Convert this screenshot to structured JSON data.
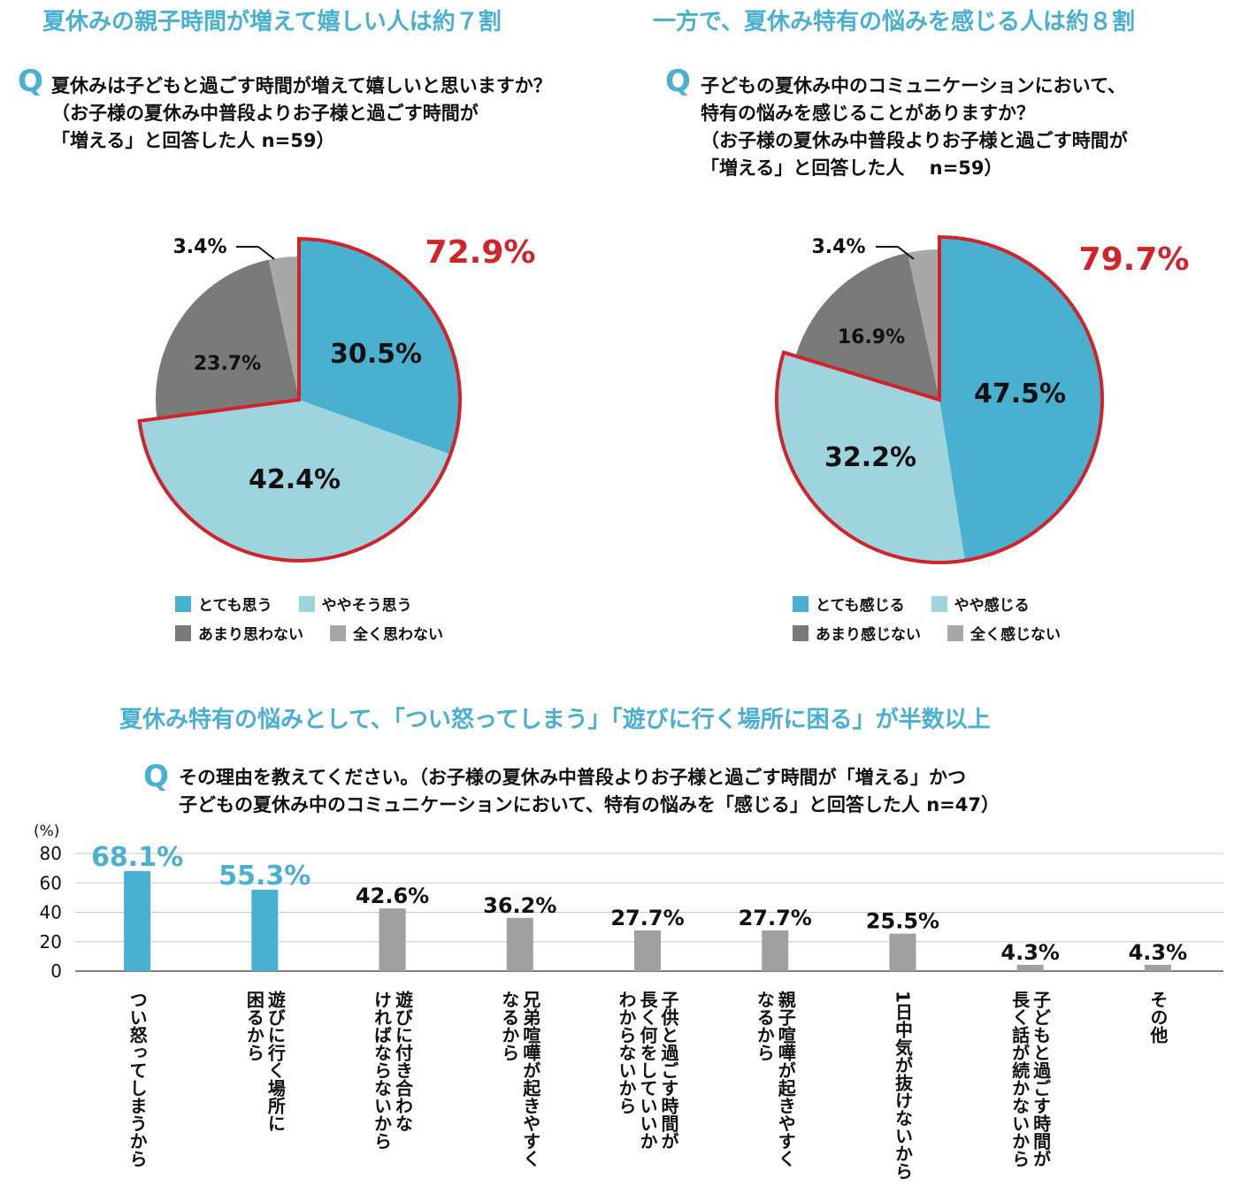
{
  "headings": {
    "left": "夏休みの親子時間が増えて嬉しい人は約７割",
    "right": "一方で、夏休み特有の悩みを感じる人は約８割",
    "bottom": "夏休み特有の悩みとして、「つい怒ってしまう」「遊びに行く場所に困る」が半数以上"
  },
  "q_mark": "Q",
  "questions": {
    "left": [
      "夏休みは子どもと過ごす時間が増えて嬉しいと思いますか？",
      "（お子様の夏休み中普段よりお子様と過ごす時間が",
      "「増える」と回答した人 n=59）"
    ],
    "right": [
      "子どもの夏休み中のコミュニケーションにおいて、",
      "特有の悩みを感じることがありますか？",
      "（お子様の夏休み中普段よりお子様と過ごす時間が",
      "「増える」と回答した人　 n=59）"
    ],
    "bottom": [
      "その理由を教えてください。（お子様の夏休み中普段よりお子様と過ごす時間が「増える」かつ",
      "子どもの夏休み中のコミュニケーションにおいて、特有の悩みを「感じる」と回答した人 n=47）"
    ]
  },
  "colors": {
    "dark_blue": "#4ab0d0",
    "light_blue": "#9dd4de",
    "dark_gray": "#7a7a7a",
    "light_gray": "#a8a8a8",
    "red": "#d2232a",
    "bar_gray": "#a0a0a0",
    "heading": "#4ab0d0"
  },
  "chart_data": [
    {
      "type": "pie",
      "labels": [
        "とても思う",
        "ややそう思う",
        "あまり思わない",
        "全く思わない"
      ],
      "values": [
        30.5,
        42.4,
        23.7,
        3.4
      ],
      "value_labels": [
        "30.5%",
        "42.4%",
        "23.7%",
        "3.4%"
      ],
      "highlight_total": "72.9%",
      "legend_rows": [
        [
          "とても思う",
          "ややそう思う"
        ],
        [
          "あまり思わない",
          "全く思わない"
        ]
      ]
    },
    {
      "type": "pie",
      "labels": [
        "とても感じる",
        "やや感じる",
        "あまり感じない",
        "全く感じない"
      ],
      "values": [
        47.5,
        32.2,
        16.9,
        3.4
      ],
      "value_labels": [
        "47.5%",
        "32.2%",
        "16.9%",
        "3.4%"
      ],
      "highlight_total": "79.7%",
      "legend_rows": [
        [
          "とても感じる",
          "やや感じる"
        ],
        [
          "あまり感じない",
          "全く感じない"
        ]
      ]
    },
    {
      "type": "bar",
      "unit_label": "(%)",
      "yticks": [
        "0",
        "20",
        "40",
        "60",
        "80"
      ],
      "ylim": [
        0,
        80
      ],
      "categories": [
        [
          "つい怒ってしまうから"
        ],
        [
          "遊びに行く場所に",
          "困るから"
        ],
        [
          "遊びに付き合わな",
          "ければならないから"
        ],
        [
          "兄弟喧嘩が起きやすく",
          "なるから"
        ],
        [
          "子供と過ごす時間が",
          "長く何をしていいか",
          "わからないから"
        ],
        [
          "親子喧嘩が起きやすく",
          "なるから"
        ],
        [
          "1日中気が抜けないから"
        ],
        [
          "子どもと過ごす時間が",
          "長く話が続かないから"
        ],
        [
          "その他"
        ]
      ],
      "values": [
        68.1,
        55.3,
        42.6,
        36.2,
        27.7,
        27.7,
        25.5,
        4.3,
        4.3
      ],
      "value_labels": [
        "68.1%",
        "55.3%",
        "42.6%",
        "36.2%",
        "27.7%",
        "27.7%",
        "25.5%",
        "4.3%",
        "4.3%"
      ],
      "highlighted": [
        true,
        true,
        false,
        false,
        false,
        false,
        false,
        false,
        false
      ]
    }
  ]
}
